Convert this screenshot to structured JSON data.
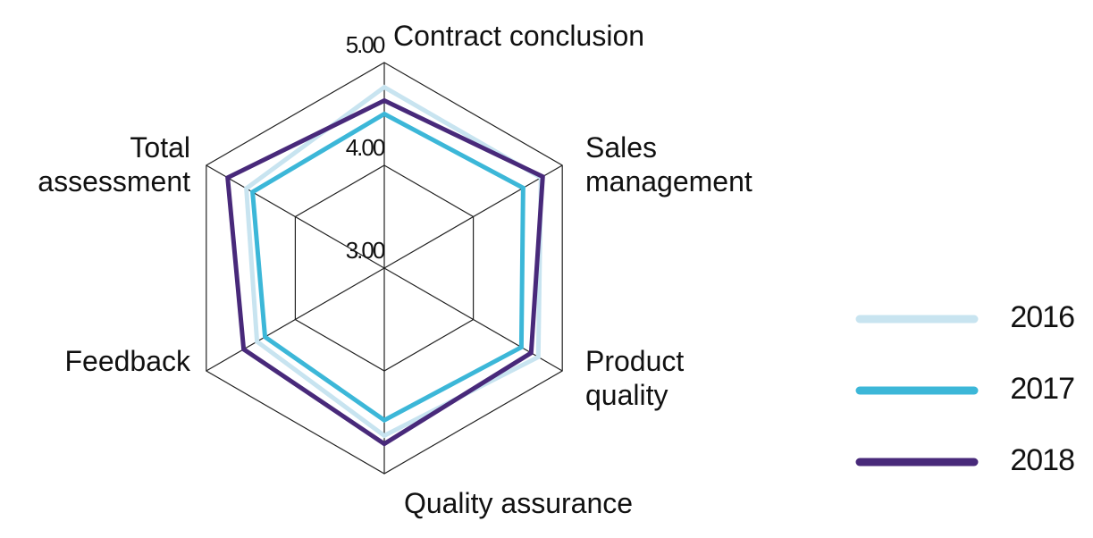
{
  "chart_data": {
    "type": "radar",
    "categories": [
      "Contract conclusion",
      "Sales management",
      "Product quality",
      "Quality assurance",
      "Feedback",
      "Total assessment"
    ],
    "series": [
      {
        "name": "2016",
        "color": "#c8e4f0",
        "values": [
          4.76,
          4.76,
          4.73,
          4.63,
          4.43,
          4.55
        ]
      },
      {
        "name": "2017",
        "color": "#3cb7d8",
        "values": [
          4.5,
          4.56,
          4.54,
          4.48,
          4.34,
          4.48
        ]
      },
      {
        "name": "2018",
        "color": "#48297a",
        "values": [
          4.63,
          4.78,
          4.65,
          4.71,
          4.58,
          4.76
        ]
      }
    ],
    "rlim": [
      3,
      5
    ],
    "rticks": [
      {
        "value": 3,
        "label": "3.00"
      },
      {
        "value": 4,
        "label": "4.00"
      },
      {
        "value": 5,
        "label": "5.00"
      }
    ]
  }
}
